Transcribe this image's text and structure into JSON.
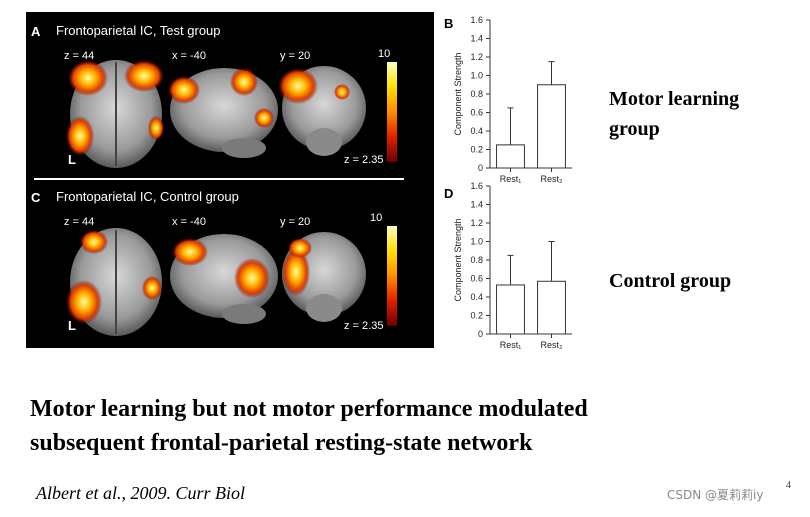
{
  "panels": {
    "A": {
      "letter": "A",
      "title": "Frontoparietal IC, Test group",
      "slices": [
        "z = 44",
        "x = -40",
        "y = 20"
      ],
      "side_label": "L",
      "colorbar_max": "10",
      "threshold": "z = 2.35"
    },
    "C": {
      "letter": "C",
      "title": "Frontoparietal IC, Control group",
      "slices": [
        "z = 44",
        "x = -40",
        "y = 20"
      ],
      "side_label": "L",
      "colorbar_max": "10",
      "threshold": "z = 2.35"
    }
  },
  "group_labels": {
    "motor": [
      "Motor learning",
      "group"
    ],
    "control": "Control group"
  },
  "title_lines": [
    "Motor learning but not motor performance modulated",
    "subsequent frontal-parietal resting-state network"
  ],
  "citation": "Albert et al., 2009. Curr Biol",
  "page_number": "4",
  "watermark": "CSDN @夏莉莉iy",
  "colors": {
    "bar_fill": "#ffffff",
    "bar_stroke": "#333333",
    "heat_low": "#8b0000",
    "heat_high": "#ffff99"
  },
  "chart_data": [
    {
      "panel": "B",
      "type": "bar",
      "ylabel": "Component Strength",
      "ylim": [
        0,
        1.6
      ],
      "yticks": [
        "0",
        "0.2",
        "0.4",
        "0.6",
        "0.8",
        "1.0",
        "1.2",
        "1.4",
        "1.6"
      ],
      "categories": [
        "Rest₁",
        "Rest₂"
      ],
      "values": [
        0.25,
        0.9
      ],
      "error_upper": [
        0.65,
        1.15
      ]
    },
    {
      "panel": "D",
      "type": "bar",
      "ylabel": "Component Strength",
      "ylim": [
        0,
        1.6
      ],
      "yticks": [
        "0",
        "0.2",
        "0.4",
        "0.6",
        "0.8",
        "1.0",
        "1.2",
        "1.4",
        "1.6"
      ],
      "categories": [
        "Rest₁",
        "Rest₂"
      ],
      "values": [
        0.53,
        0.57
      ],
      "error_upper": [
        0.85,
        1.0
      ]
    }
  ]
}
